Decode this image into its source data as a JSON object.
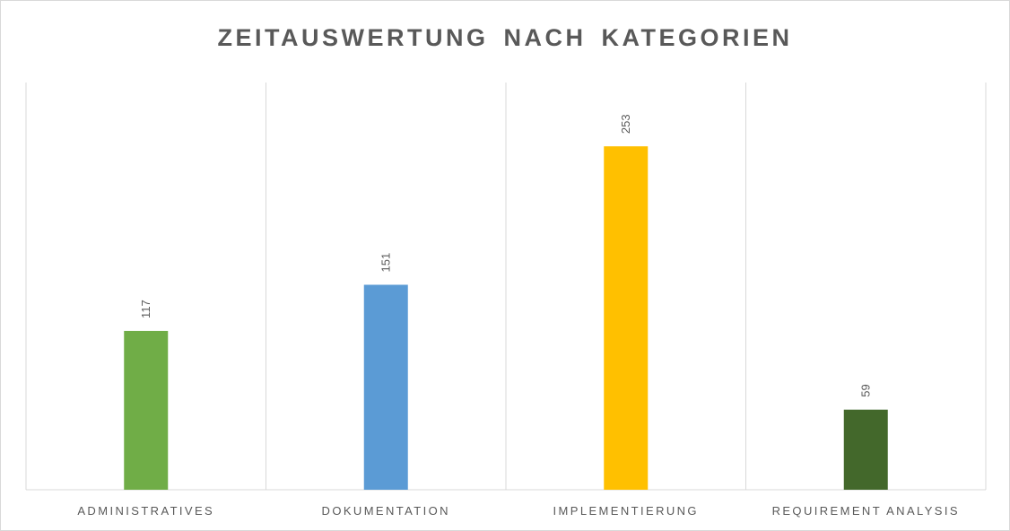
{
  "chart_data": {
    "type": "bar",
    "title": "ZEITAUSWERTUNG NACH KATEGORIEN",
    "categories": [
      "ADMINISTRATIVES",
      "DOKUMENTATION",
      "IMPLEMENTIERUNG",
      "REQUIREMENT ANALYSIS"
    ],
    "values": [
      117,
      151,
      253,
      59
    ],
    "colors": [
      "#70ad47",
      "#5b9bd5",
      "#ffc000",
      "#43682b"
    ],
    "xlabel": "",
    "ylabel": "",
    "ylim": [
      0,
      300
    ],
    "grid": "vertical category separators",
    "legend": "none",
    "data_labels": true
  }
}
